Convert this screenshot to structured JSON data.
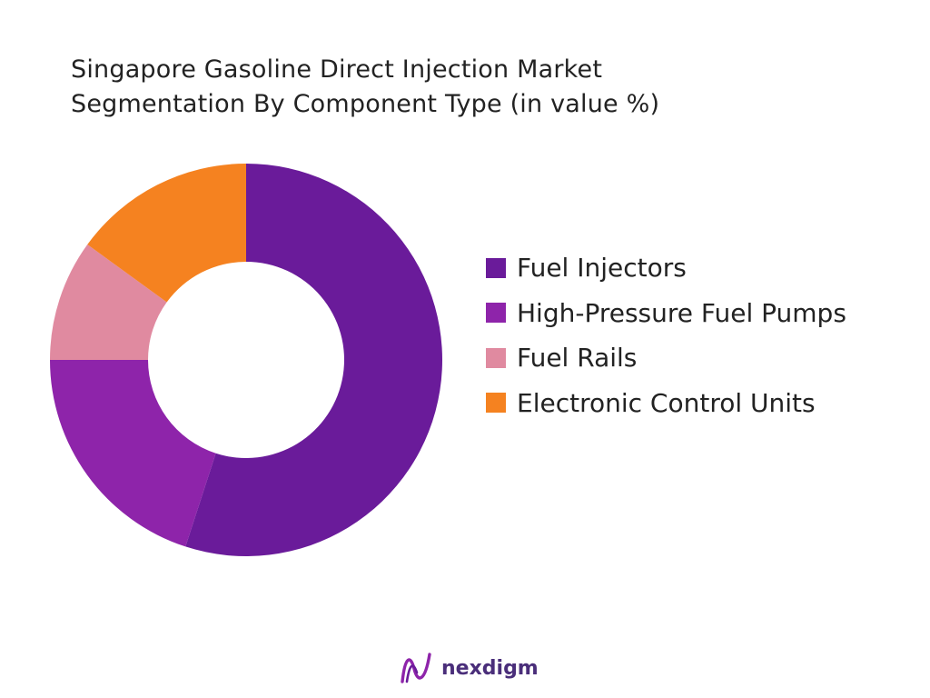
{
  "chart_data": {
    "type": "pie",
    "variant": "donut",
    "title_lines": [
      "Singapore Gasoline Direct Injection Market",
      "Segmentation By Component Type (in value %)"
    ],
    "categories": [
      "Fuel Injectors",
      "High-Pressure Fuel Pumps",
      "Fuel Rails",
      "Electronic Control Units"
    ],
    "values": [
      55,
      20,
      10,
      15
    ],
    "unit": "%",
    "colors": [
      "#6a1b9a",
      "#8e24aa",
      "#e08aa0",
      "#f58220"
    ],
    "legend_position": "right"
  },
  "brand": {
    "name": "nexdigm",
    "logo_icon": "wave-logo-icon",
    "logo_colors": [
      "#8e24aa",
      "#6a1b9a"
    ]
  }
}
